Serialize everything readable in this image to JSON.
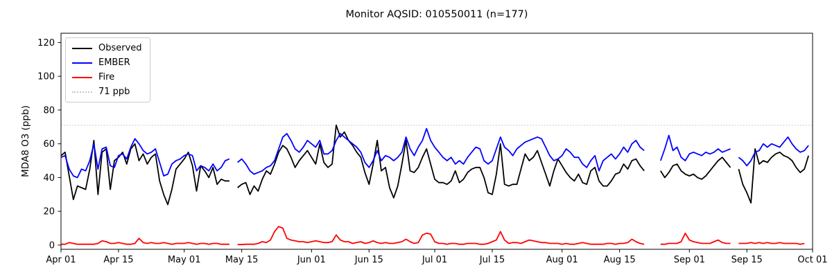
{
  "chart_data": {
    "type": "line",
    "title": "Monitor AQSID: 010550011 (n=177)",
    "ylabel": "MDA8 O3 (ppb)",
    "xlabel": "",
    "ylim": [
      -2.5,
      125.5
    ],
    "yticks": [
      0,
      20,
      40,
      60,
      80,
      100,
      120
    ],
    "x_range_days": 183,
    "x_tick_days": [
      0,
      14,
      30,
      44,
      61,
      75,
      91,
      105,
      122,
      136,
      153,
      167,
      183
    ],
    "x_tick_labels": [
      "Apr 01",
      "Apr 15",
      "May 01",
      "May 15",
      "Jun 01",
      "Jun 15",
      "Jul 01",
      "Jul 15",
      "Aug 01",
      "Aug 15",
      "Sep 01",
      "Sep 15",
      "Oct 01"
    ],
    "grid": false,
    "legend_position": "upper left",
    "reference_line": {
      "value": 71,
      "label": "71 ppb",
      "color": "#c8c8c8",
      "style": "dotted"
    },
    "series": [
      {
        "name": "Observed",
        "color": "#000000",
        "values": [
          53,
          55,
          41,
          27,
          35,
          34,
          33,
          45,
          62,
          30,
          55,
          57,
          33,
          50,
          52,
          55,
          48,
          57,
          60,
          50,
          54,
          48,
          52,
          54,
          38,
          30,
          24,
          33,
          45,
          48,
          51,
          55,
          47,
          32,
          47,
          44,
          40,
          46,
          36,
          39,
          38,
          38,
          null,
          34,
          36,
          37,
          30,
          35,
          32,
          39,
          44,
          42,
          48,
          55,
          59,
          57,
          52,
          46,
          50,
          53,
          56,
          52,
          48,
          60,
          49,
          46,
          48,
          71,
          64,
          67,
          62,
          59,
          55,
          52,
          43,
          36,
          48,
          62,
          44,
          46,
          34,
          28,
          35,
          48,
          62,
          44,
          43,
          46,
          52,
          57,
          48,
          39,
          37,
          37,
          36,
          38,
          44,
          37,
          39,
          43,
          45,
          46,
          46,
          40,
          31,
          30,
          42,
          60,
          36,
          35,
          36,
          36,
          45,
          54,
          50,
          52,
          56,
          49,
          42,
          35,
          44,
          51,
          47,
          43,
          40,
          38,
          42,
          37,
          36,
          44,
          46,
          38,
          35,
          35,
          38,
          42,
          43,
          48,
          45,
          50,
          51,
          47,
          44,
          null,
          null,
          null,
          44,
          40,
          43,
          47,
          48,
          44,
          42,
          41,
          42,
          40,
          39,
          41,
          44,
          47,
          50,
          52,
          49,
          46,
          null,
          45,
          36,
          31,
          25,
          57,
          48,
          50,
          49,
          52,
          54,
          55,
          53,
          52,
          50,
          46,
          43,
          45,
          53,
          null
        ]
      },
      {
        "name": "EMBER",
        "color": "#0000ff",
        "values": [
          52,
          53,
          45,
          41,
          40,
          45,
          44,
          50,
          60,
          45,
          57,
          58,
          47,
          46,
          53,
          54,
          51,
          58,
          63,
          60,
          56,
          54,
          55,
          57,
          49,
          41,
          42,
          48,
          50,
          51,
          53,
          54,
          53,
          44,
          47,
          46,
          44,
          48,
          44,
          46,
          50,
          51,
          null,
          49,
          51,
          48,
          44,
          42,
          43,
          44,
          46,
          47,
          50,
          57,
          64,
          66,
          62,
          57,
          55,
          58,
          62,
          60,
          58,
          62,
          54,
          54,
          56,
          62,
          66,
          64,
          62,
          60,
          58,
          55,
          49,
          46,
          50,
          56,
          50,
          53,
          52,
          50,
          52,
          55,
          64,
          57,
          53,
          58,
          62,
          69,
          62,
          58,
          55,
          52,
          50,
          52,
          48,
          50,
          48,
          52,
          55,
          58,
          57,
          50,
          48,
          50,
          57,
          64,
          58,
          56,
          53,
          57,
          59,
          61,
          62,
          63,
          64,
          63,
          58,
          53,
          50,
          51,
          53,
          57,
          55,
          52,
          52,
          48,
          46,
          50,
          53,
          44,
          50,
          52,
          54,
          51,
          54,
          58,
          55,
          60,
          62,
          58,
          56,
          null,
          null,
          null,
          50,
          57,
          65,
          56,
          58,
          52,
          50,
          54,
          55,
          54,
          53,
          55,
          54,
          55,
          57,
          55,
          56,
          57,
          null,
          52,
          50,
          47,
          50,
          55,
          56,
          60,
          58,
          60,
          59,
          58,
          61,
          64,
          60,
          57,
          55,
          56,
          59,
          null
        ]
      },
      {
        "name": "Fire",
        "color": "#ff0000",
        "values": [
          0.5,
          0.5,
          1.5,
          1,
          0.5,
          0.5,
          0.5,
          0.5,
          0.5,
          1,
          2.5,
          2,
          1,
          1,
          1.5,
          1,
          0.5,
          0.5,
          1,
          4,
          1.5,
          1,
          1.5,
          1,
          1,
          1.5,
          1,
          0.5,
          1,
          1,
          1,
          1.5,
          1,
          0.5,
          1,
          1,
          0.5,
          1,
          1,
          0.5,
          0.5,
          0.5,
          null,
          0.3,
          0.3,
          0.5,
          0.5,
          0.5,
          1,
          2,
          1.5,
          3,
          8,
          11,
          10,
          4,
          3,
          2.5,
          2,
          2,
          1.5,
          2,
          2.5,
          2,
          1.5,
          1.5,
          2,
          6,
          3,
          2,
          2,
          1,
          1.5,
          2,
          1,
          1.5,
          2.5,
          1.5,
          1,
          1.5,
          1,
          1,
          1.5,
          2,
          3.5,
          2,
          1,
          1.5,
          6,
          7,
          6.5,
          2,
          1,
          1,
          0.5,
          1,
          1,
          0.5,
          0.5,
          1,
          1,
          1,
          0.5,
          0.5,
          1,
          2,
          3,
          8,
          3,
          1,
          1.5,
          1.5,
          1,
          2,
          3,
          2.5,
          2,
          1.5,
          1.5,
          1,
          1,
          1,
          0.5,
          1,
          0.5,
          0.5,
          1,
          1.5,
          1,
          0.5,
          0.5,
          0.5,
          0.5,
          1,
          1,
          0.5,
          1,
          1,
          1.5,
          3.5,
          2,
          1,
          0.5,
          null,
          null,
          null,
          0.5,
          0.5,
          1,
          1,
          1,
          2,
          7,
          3,
          2,
          1.5,
          1,
          1,
          1,
          2,
          3,
          1.5,
          1,
          1,
          null,
          1,
          1,
          1,
          1.5,
          1,
          1.5,
          1,
          1.5,
          1,
          1,
          1.5,
          1,
          1,
          1,
          1,
          0.5,
          1,
          null,
          null
        ]
      }
    ]
  }
}
